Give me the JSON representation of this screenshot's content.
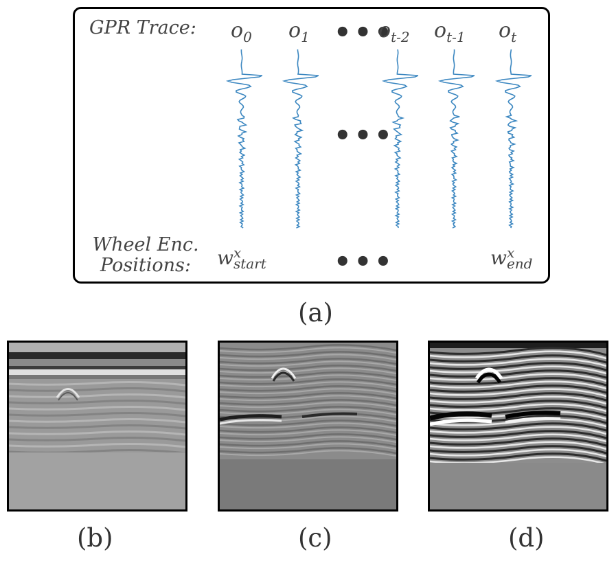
{
  "panel_a": {
    "trace_row_label": "GPR Trace:",
    "encoder_row_label": [
      "Wheel Enc.",
      "Positions:"
    ],
    "observations": [
      {
        "base": "o",
        "sub": "0"
      },
      {
        "base": "o",
        "sub": "1"
      },
      {
        "base": "o",
        "sub": "t-2"
      },
      {
        "base": "o",
        "sub": "t-1"
      },
      {
        "base": "o",
        "sub": "t"
      }
    ],
    "encoder_start": {
      "base": "w",
      "sup": "x",
      "sub": "start"
    },
    "encoder_end": {
      "base": "w",
      "sup": "x",
      "sub": "end"
    },
    "ellipsis": "•••",
    "trace_color": "#3a86c0",
    "caption": "(a)"
  },
  "bscans": [
    {
      "caption": "(b)",
      "style": "raw"
    },
    {
      "caption": "(c)",
      "style": "filtered"
    },
    {
      "caption": "(d)",
      "style": "enhanced"
    }
  ]
}
